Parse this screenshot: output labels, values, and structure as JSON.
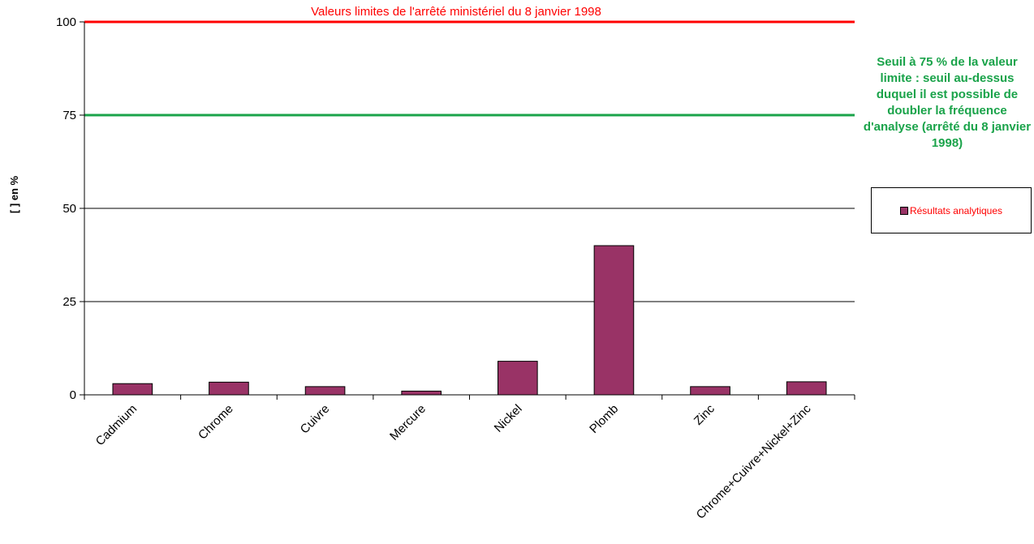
{
  "chart_data": {
    "type": "bar",
    "title": "",
    "xlabel": "",
    "ylabel": "[ ] en %",
    "ylim": [
      0,
      100
    ],
    "yticks": [
      "0",
      "25",
      "50",
      "75",
      "100"
    ],
    "grid": true,
    "categories": [
      "Cadmium",
      "Chrome",
      "Cuivre",
      "Mercure",
      "Nickel",
      "Plomb",
      "Zinc",
      "Chrome+Cuivre+Nickel+Zinc"
    ],
    "series": [
      {
        "name": "Résultats analytiques",
        "values": [
          3,
          3.4,
          2.2,
          1,
          9,
          40,
          2.2,
          3.5
        ]
      }
    ],
    "reference_lines": [
      {
        "value": 100,
        "label": "Valeurs limites de l'arrêté ministériel du 8 janvier 1998",
        "color": "#ff0000"
      },
      {
        "value": 75,
        "label": "Seuil à 75 % de la valeur limite : seuil au-dessus duquel il est possible de doubler la fréquence d'analyse (arrêté du 8 janvier 1998)",
        "color": "#1aa34a"
      }
    ],
    "legend_position": "right",
    "colors": {
      "bar": "#993366",
      "limit_line": "#ff0000",
      "threshold_line": "#1aa34a"
    }
  }
}
